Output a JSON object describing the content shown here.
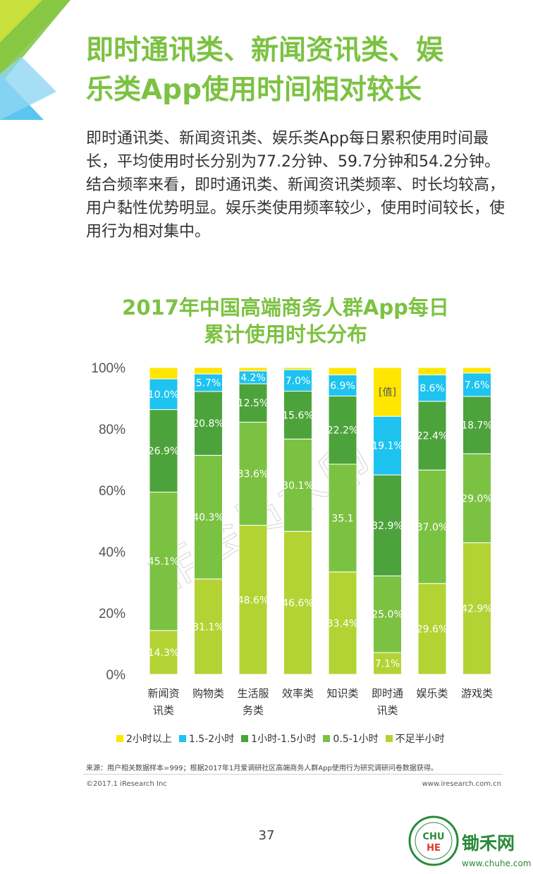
{
  "page": {
    "title_lines": [
      "即时通讯类、新闻资讯类、娱",
      "乐类App使用时间相对较长"
    ],
    "body_paragraphs": [
      "即时通讯类、新闻资讯类、娱乐类App每日累积使用时间最长，平均使用时长分别为77.2分钟、59.7分钟和54.2分钟。",
      "结合频率来看，即时通讯类、新闻资讯类频率、时长均较高，用户黏性优势明显。娱乐类使用频率较少，使用时间较长，使用行为相对集中。"
    ],
    "source": "来源：用户相关数据样本=999；根据2017年1月爱调研社区高端商务人群App使用行为研究调研问卷数据获得。",
    "copyright": "©2017.1 iResearch Inc",
    "url": "www.iresearch.com.cn",
    "page_number": "37",
    "logo_text": "锄禾网",
    "logo_url": "www.chuhe.com"
  },
  "chart_data": {
    "type": "bar",
    "stacked": true,
    "title_lines": [
      "2017年中国高端商务人群App每日",
      "累计使用时长分布"
    ],
    "categories": [
      [
        "新闻资",
        "讯类"
      ],
      [
        "购物类"
      ],
      [
        "生活服",
        "务类"
      ],
      [
        "效率类"
      ],
      [
        "知识类"
      ],
      [
        "即时通",
        "讯类"
      ],
      [
        "娱乐类"
      ],
      [
        "游戏类"
      ]
    ],
    "ylim": [
      0,
      100
    ],
    "yticks": [
      "0%",
      "20%",
      "40%",
      "60%",
      "80%",
      "100%"
    ],
    "legend_position": "bottom",
    "series": [
      {
        "name": "不足半小时",
        "color": "#b3d334",
        "values": [
          14.3,
          31.1,
          48.6,
          46.6,
          33.4,
          7.1,
          29.6,
          42.9
        ],
        "labels": [
          "14.3%",
          "31.1%",
          "48.6%",
          "46.6%",
          "33.4%",
          "7.1%",
          "29.6%",
          "42.9%"
        ]
      },
      {
        "name": "0.5-1小时",
        "color": "#7cc242",
        "values": [
          45.1,
          40.3,
          33.6,
          30.1,
          35.1,
          25.0,
          37.0,
          29.0
        ],
        "labels": [
          "45.1%",
          "40.3%",
          "33.6%",
          "30.1%",
          "35.1",
          "25.0%",
          "37.0%",
          "29.0%"
        ]
      },
      {
        "name": "1小时-1.5小时",
        "color": "#4da33b",
        "values": [
          26.9,
          20.8,
          12.5,
          15.6,
          22.2,
          32.9,
          22.4,
          18.7
        ],
        "labels": [
          "26.9%",
          "20.8%",
          "12.5%",
          "15.6%",
          "22.2%",
          "32.9%",
          "22.4%",
          "18.7%"
        ]
      },
      {
        "name": "1.5-2小时",
        "color": "#1ec3f0",
        "values": [
          10.0,
          5.7,
          4.2,
          7.0,
          6.9,
          19.1,
          8.6,
          7.6
        ],
        "labels": [
          "10.0%",
          "5.7%",
          "4.2%",
          "7.0%",
          "6.9%",
          "19.1%",
          "8.6%",
          "7.6%"
        ]
      },
      {
        "name": "2小时以上",
        "color": "#ffe600",
        "values": [
          3.7,
          2.1,
          1.1,
          0.7,
          2.4,
          15.9,
          2.4,
          1.8
        ],
        "labels": [
          "",
          "",
          "",
          "",
          "",
          "[值]",
          "",
          ""
        ]
      }
    ],
    "watermark": "非会员水印"
  }
}
